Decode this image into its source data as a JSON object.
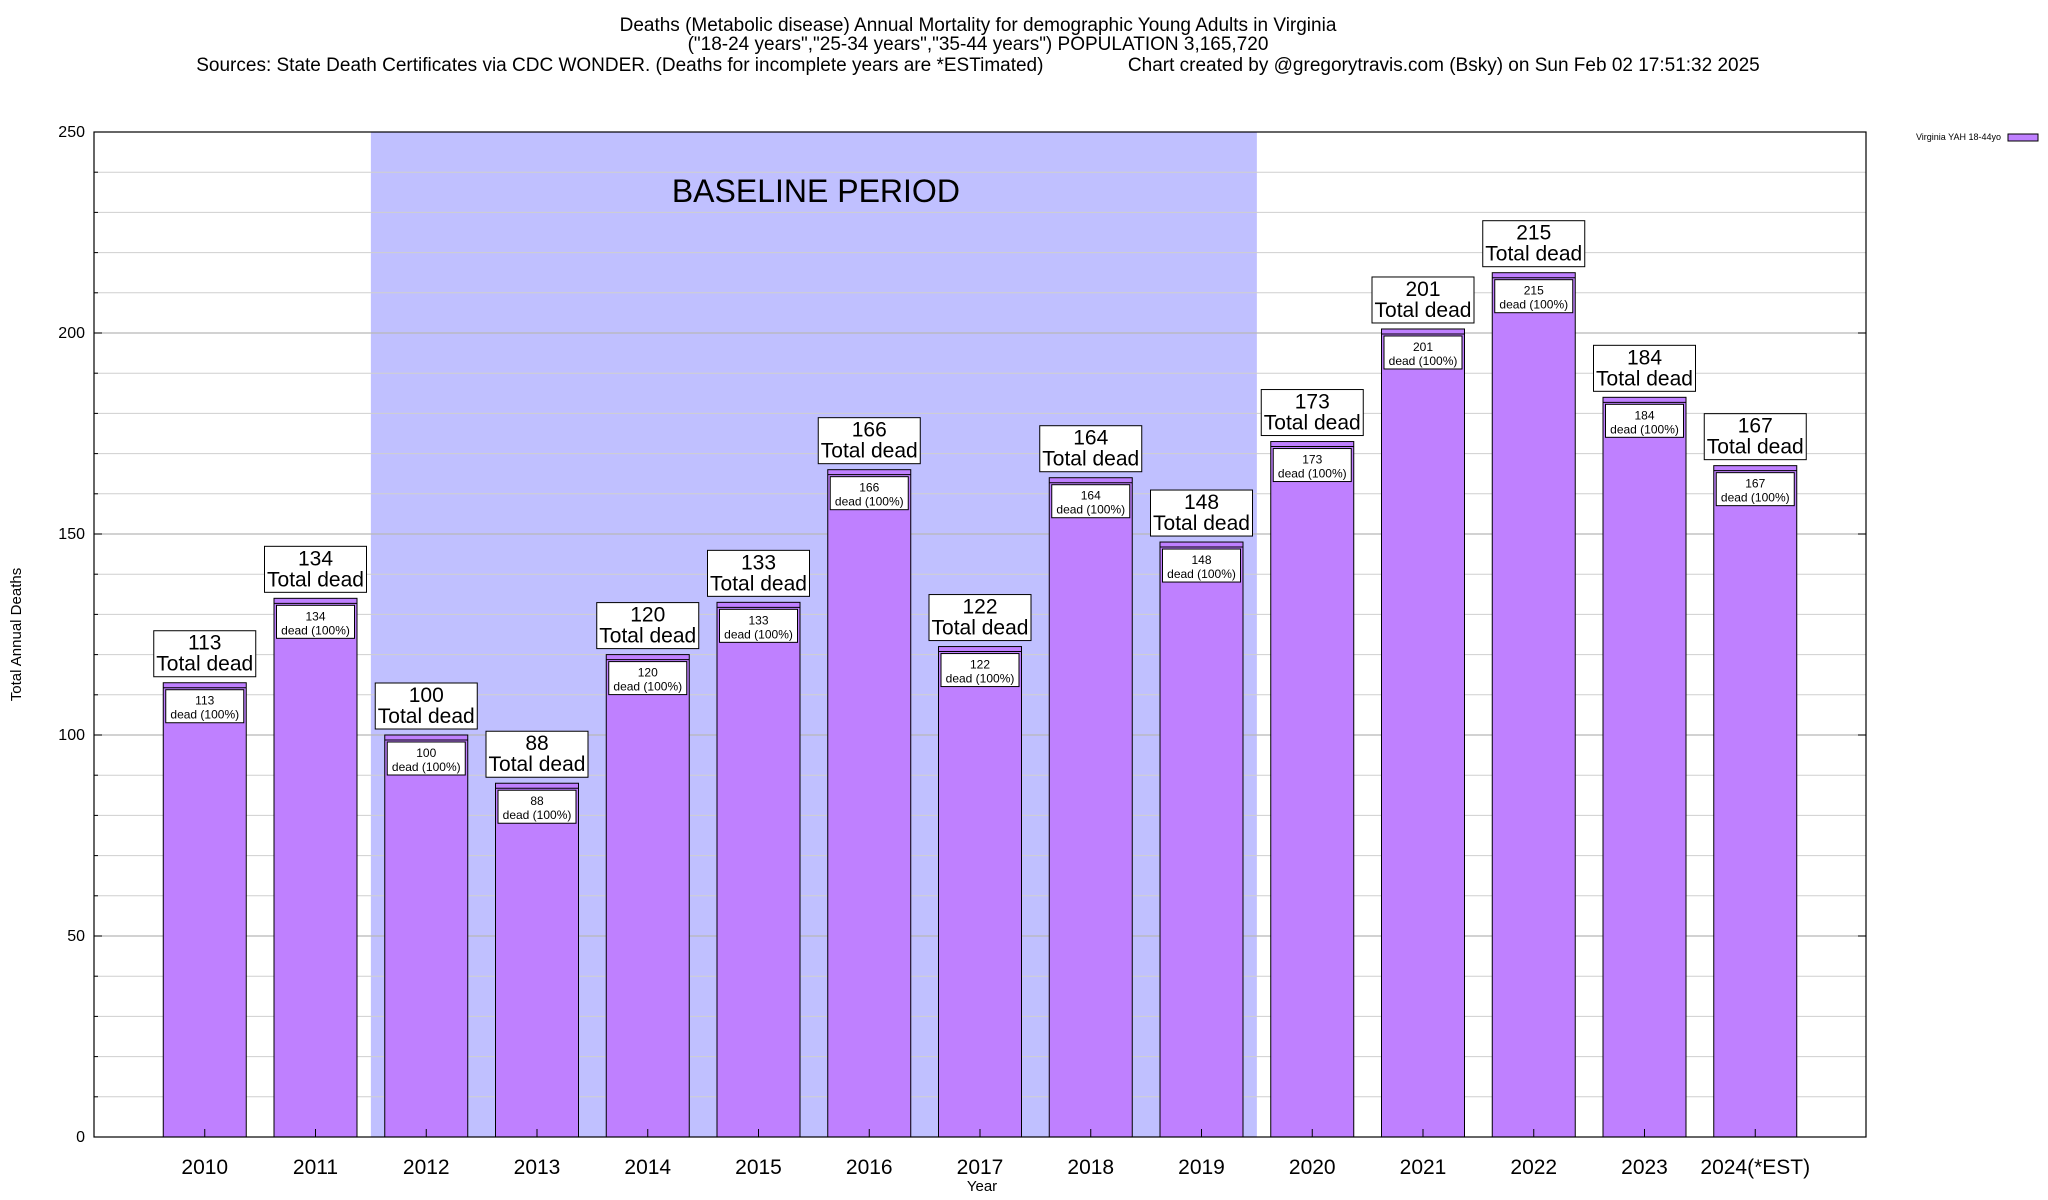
{
  "chart_data": {
    "type": "bar",
    "title": [
      "Deaths (Metabolic disease) Annual Mortality for demographic Young Adults in Virginia",
      "(\"18-24 years\",\"25-34 years\",\"35-44 years\") POPULATION 3,165,720",
      "Sources: State Death Certificates via CDC WONDER. (Deaths for incomplete years are *ESTimated)                Chart created by @gregorytravis.com (Bsky) on Sun Feb 02 17:51:32 2025"
    ],
    "xlabel": "Year",
    "ylabel": "Total Annual Deaths",
    "ylim": [
      0,
      250
    ],
    "yticks": [
      "0",
      "50",
      "100",
      "150",
      "200",
      "250"
    ],
    "categories": [
      "2010",
      "2011",
      "2012",
      "2013",
      "2014",
      "2015",
      "2016",
      "2017",
      "2018",
      "2019",
      "2020",
      "2021",
      "2022",
      "2023",
      "2024(*EST)"
    ],
    "series": [
      {
        "name": "Virginia YAH 18-44yo",
        "color": "#bf80ff",
        "values": [
          113,
          134,
          100,
          88,
          120,
          133,
          166,
          122,
          164,
          148,
          173,
          201,
          215,
          184,
          167
        ]
      }
    ],
    "bar_big_labels": [
      [
        "113",
        "Total dead"
      ],
      [
        "134",
        "Total dead"
      ],
      [
        "100",
        "Total dead"
      ],
      [
        "88",
        "Total dead"
      ],
      [
        "120",
        "Total dead"
      ],
      [
        "133",
        "Total dead"
      ],
      [
        "166",
        "Total dead"
      ],
      [
        "122",
        "Total dead"
      ],
      [
        "164",
        "Total dead"
      ],
      [
        "148",
        "Total dead"
      ],
      [
        "173",
        "Total dead"
      ],
      [
        "201",
        "Total dead"
      ],
      [
        "215",
        "Total dead"
      ],
      [
        "184",
        "Total dead"
      ],
      [
        "167",
        "Total dead"
      ]
    ],
    "bar_small_labels": [
      [
        "113",
        "dead (100%)"
      ],
      [
        "134",
        "dead (100%)"
      ],
      [
        "100",
        "dead (100%)"
      ],
      [
        "88",
        "dead (100%)"
      ],
      [
        "120",
        "dead (100%)"
      ],
      [
        "133",
        "dead (100%)"
      ],
      [
        "166",
        "dead (100%)"
      ],
      [
        "122",
        "dead (100%)"
      ],
      [
        "164",
        "dead (100%)"
      ],
      [
        "148",
        "dead (100%)"
      ],
      [
        "173",
        "dead (100%)"
      ],
      [
        "201",
        "dead (100%)"
      ],
      [
        "215",
        "dead (100%)"
      ],
      [
        "184",
        "dead (100%)"
      ],
      [
        "167",
        "dead (100%)"
      ]
    ],
    "annotation": {
      "text": "BASELINE PERIOD",
      "from_category": "2012",
      "to_category": "2019",
      "color": "#c0c0ff"
    },
    "legend_position": "top-right",
    "grid": true
  }
}
